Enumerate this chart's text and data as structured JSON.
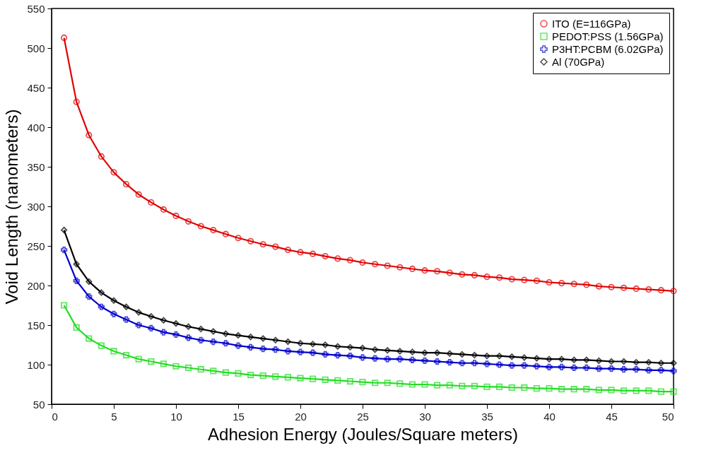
{
  "chart_data": {
    "type": "line",
    "xlabel": "Adhesion Energy (Joules/Square meters)",
    "ylabel": "Void Length (nanometers)",
    "x": [
      1,
      2,
      3,
      4,
      5,
      6,
      7,
      8,
      9,
      10,
      11,
      12,
      13,
      14,
      15,
      16,
      17,
      18,
      19,
      20,
      21,
      22,
      23,
      24,
      25,
      26,
      27,
      28,
      29,
      30,
      31,
      32,
      33,
      34,
      35,
      36,
      37,
      38,
      39,
      40,
      41,
      42,
      43,
      44,
      45,
      46,
      47,
      48,
      49,
      50
    ],
    "xlim": [
      0,
      50
    ],
    "xticks": [
      0,
      5,
      10,
      15,
      20,
      25,
      30,
      35,
      40,
      45,
      50
    ],
    "ylim": [
      50,
      550
    ],
    "yticks": [
      50,
      100,
      150,
      200,
      250,
      300,
      350,
      400,
      450,
      500,
      550
    ],
    "grid": false,
    "legend": "top right",
    "line_style": "solid",
    "series": [
      {
        "name": "ITO (E=116GPa)",
        "color": "#e00000",
        "marker": "circle",
        "values": [
          513,
          432,
          390,
          363,
          343,
          328,
          315,
          305,
          296,
          288,
          281,
          275,
          270,
          265,
          260,
          256,
          252,
          249,
          245,
          242,
          240,
          237,
          234,
          232,
          229,
          227,
          225,
          223,
          221,
          219,
          218,
          216,
          214,
          213,
          211,
          210,
          208,
          207,
          206,
          204,
          203,
          202,
          201,
          199,
          198,
          197,
          196,
          195,
          194,
          193
        ]
      },
      {
        "name": "PEDOT:PSS (1.56GPa)",
        "color": "#22dd22",
        "marker": "square",
        "values": [
          175,
          147,
          133,
          124,
          117,
          112,
          107,
          104,
          101,
          98,
          96,
          94,
          92,
          90,
          89,
          87,
          86,
          85,
          84,
          83,
          82,
          81,
          80,
          79,
          78,
          77,
          77,
          76,
          75,
          75,
          74,
          74,
          73,
          73,
          72,
          72,
          71,
          71,
          70,
          70,
          69,
          69,
          69,
          68,
          68,
          67,
          67,
          67,
          66,
          66
        ]
      },
      {
        "name": "P3HT:PCBM (6.02GPa)",
        "color": "#0000cc",
        "marker": "cross",
        "values": [
          245,
          206,
          186,
          173,
          164,
          157,
          150,
          146,
          141,
          138,
          134,
          131,
          129,
          127,
          124,
          122,
          120,
          119,
          117,
          116,
          115,
          113,
          112,
          111,
          109,
          108,
          107,
          107,
          106,
          105,
          104,
          103,
          102,
          102,
          101,
          100,
          99,
          99,
          98,
          97,
          97,
          96,
          96,
          95,
          95,
          94,
          94,
          93,
          93,
          92
        ]
      },
      {
        "name": "Al (70GPa)",
        "color": "#000000",
        "marker": "diamond",
        "values": [
          270,
          227,
          205,
          191,
          181,
          173,
          166,
          161,
          156,
          152,
          148,
          145,
          142,
          139,
          137,
          135,
          133,
          131,
          129,
          127,
          126,
          125,
          123,
          122,
          121,
          119,
          118,
          117,
          116,
          115,
          115,
          114,
          113,
          112,
          111,
          111,
          110,
          109,
          108,
          107,
          107,
          106,
          106,
          105,
          104,
          104,
          103,
          103,
          102,
          102
        ]
      }
    ]
  }
}
